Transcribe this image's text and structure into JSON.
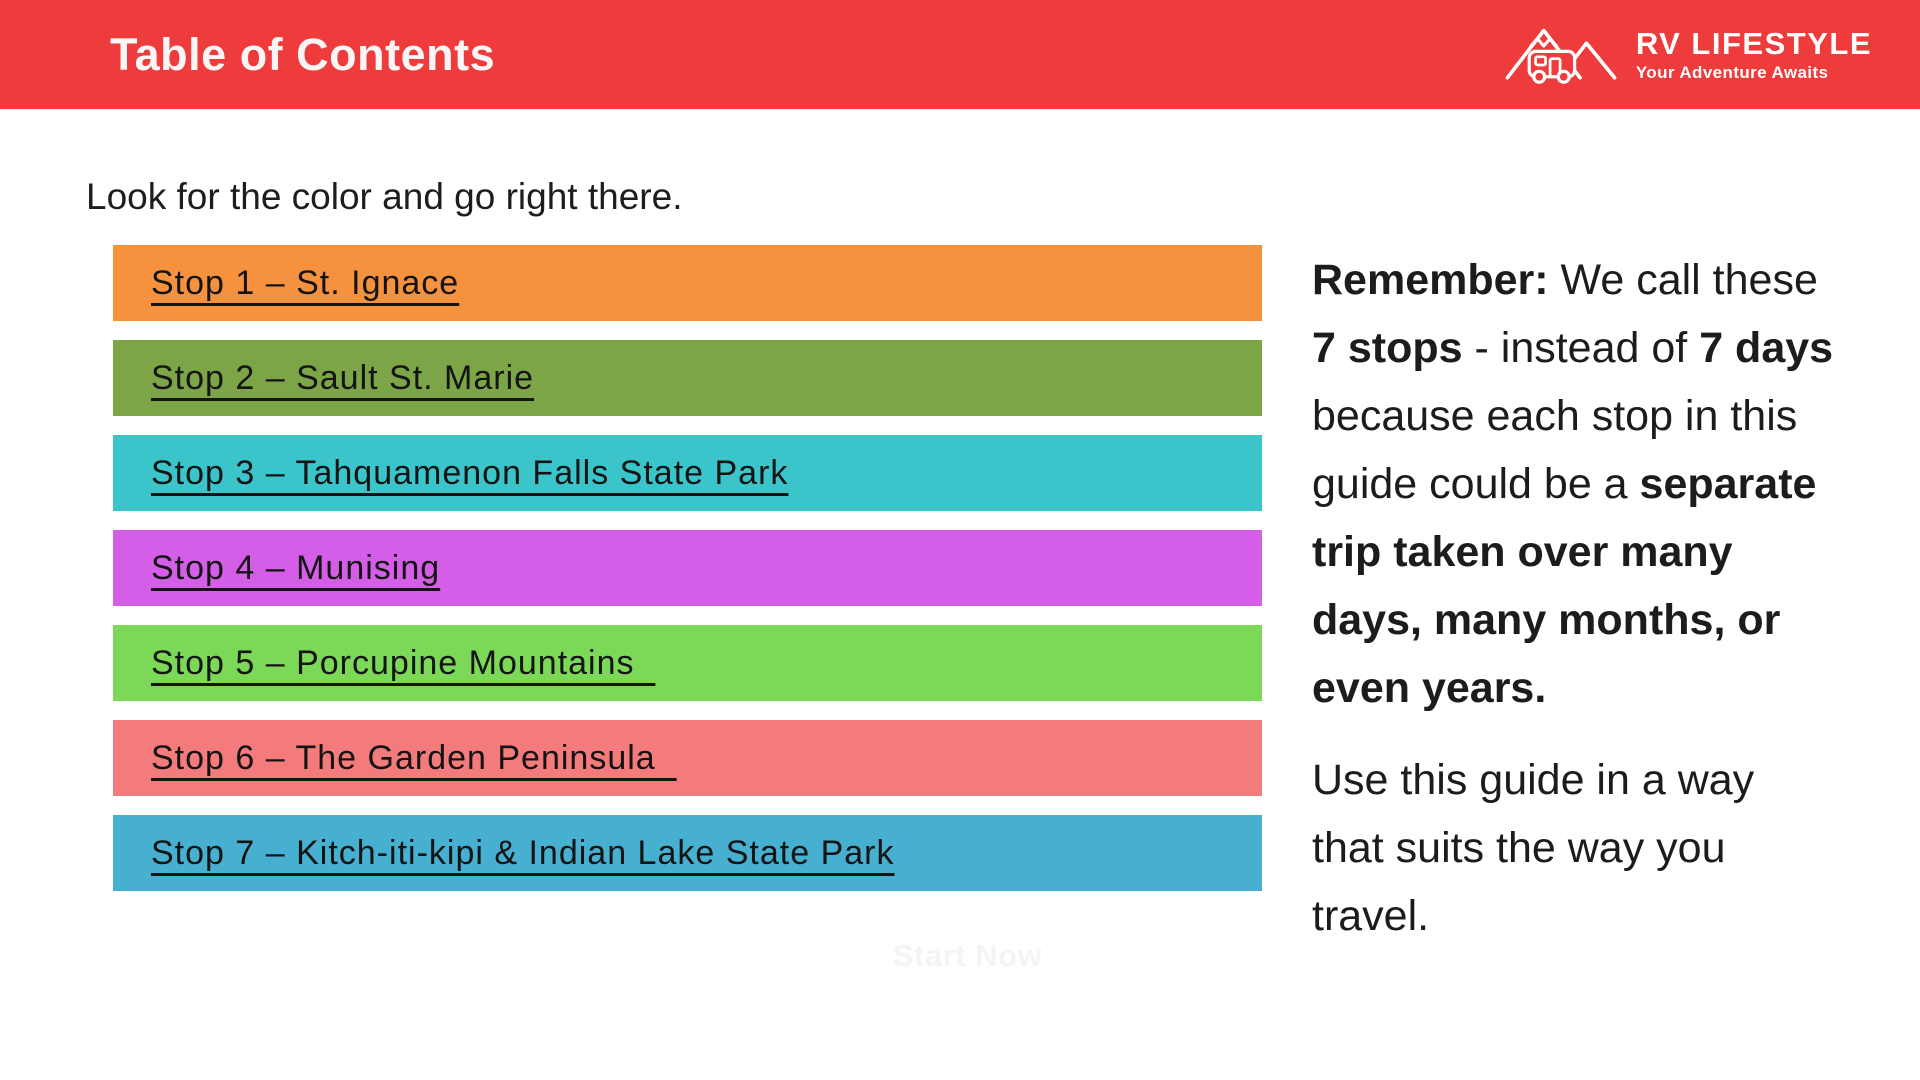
{
  "header": {
    "title": "Table of Contents",
    "logo": {
      "name": "RV LIFESTYLE",
      "tagline": "Your Adventure Awaits"
    }
  },
  "colors": {
    "header_bg": "#EE3B3C",
    "logo_white": "#FFFFFF",
    "link_text": "#141414"
  },
  "intro": "Look for the color and go right there.",
  "stops": [
    {
      "label": "Stop 1 – St. Ignace",
      "color": "#F6913E"
    },
    {
      "label": "Stop 2 – Sault St. Marie",
      "color": "#7CA548"
    },
    {
      "label": "Stop 3 – Tahquamenon Falls State Park",
      "color": "#3BC5CB"
    },
    {
      "label": "Stop 4 – Munising",
      "color": "#D55EE8"
    },
    {
      "label": "Stop 5 – Porcupine Mountains  ",
      "color": "#7CD957"
    },
    {
      "label": "Stop 6 – The Garden Peninsula  ",
      "color": "#F37B7B"
    },
    {
      "label": "Stop 7 – Kitch-iti-kipi & Indian Lake State Park",
      "color": "#47AFCF"
    }
  ],
  "note": {
    "paragraph1_lines": [
      [
        {
          "t": "Remember:",
          "b": true
        },
        {
          "t": " We call these",
          "b": false
        }
      ],
      [
        {
          "t": "7 stops",
          "b": true
        },
        {
          "t": " - instead of ",
          "b": false
        },
        {
          "t": "7 days",
          "b": true
        }
      ],
      [
        {
          "t": "because each stop in this",
          "b": false
        }
      ],
      [
        {
          "t": "guide could be a ",
          "b": false
        },
        {
          "t": "separate",
          "b": true
        }
      ],
      [
        {
          "t": "trip taken over many",
          "b": true
        }
      ],
      [
        {
          "t": "days, many months, or",
          "b": true
        }
      ],
      [
        {
          "t": "even years.",
          "b": true
        }
      ]
    ],
    "paragraph2_lines": [
      "Use this guide in a way",
      "that suits the way you",
      "travel."
    ]
  },
  "watermark": "Start Now"
}
